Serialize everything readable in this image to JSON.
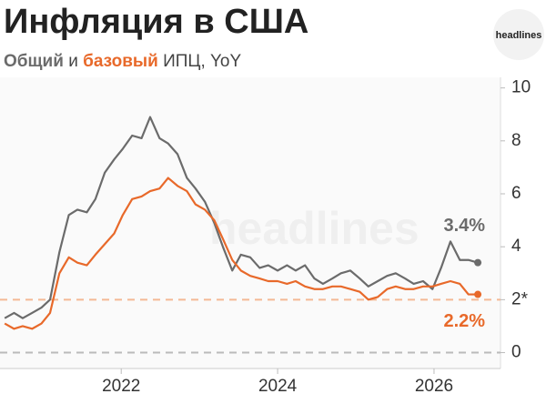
{
  "chart_data": {
    "type": "line",
    "title": "Инфляция в США",
    "subtitle_joiner": "и",
    "subtitle_suffix": "ИПЦ, YoY",
    "logo": "headlines",
    "watermark": "headlines",
    "x": [
      2020.51,
      2020.63,
      2020.74,
      2020.86,
      2020.98,
      2021.09,
      2021.21,
      2021.33,
      2021.44,
      2021.56,
      2021.67,
      2021.79,
      2021.91,
      2022.02,
      2022.14,
      2022.26,
      2022.37,
      2022.49,
      2022.6,
      2022.72,
      2022.84,
      2022.95,
      2023.07,
      2023.19,
      2023.3,
      2023.42,
      2023.53,
      2023.65,
      2023.77,
      2023.88,
      2024.0,
      2024.12,
      2024.23,
      2024.35,
      2024.47,
      2024.58,
      2024.7,
      2024.81,
      2024.93,
      2025.05,
      2025.16,
      2025.28,
      2025.4,
      2025.51,
      2025.63,
      2025.74,
      2025.86,
      2025.98,
      2026.09,
      2026.21,
      2026.33,
      2026.44,
      2026.56
    ],
    "series": [
      {
        "name": "Общий",
        "color": "#6b6b6b",
        "label": "3.4%",
        "values": [
          1.3,
          1.5,
          1.3,
          1.5,
          1.7,
          2.0,
          3.8,
          5.2,
          5.4,
          5.3,
          5.8,
          6.8,
          7.3,
          7.7,
          8.2,
          8.1,
          8.9,
          8.1,
          7.9,
          7.5,
          6.6,
          6.2,
          5.7,
          4.9,
          4.0,
          3.1,
          3.7,
          3.6,
          3.2,
          3.3,
          3.1,
          3.3,
          3.1,
          3.3,
          2.8,
          2.6,
          2.8,
          3.0,
          3.1,
          2.8,
          2.5,
          2.7,
          2.9,
          3.0,
          2.8,
          2.6,
          2.7,
          2.4,
          3.2,
          4.2,
          3.5,
          3.5,
          3.4
        ]
      },
      {
        "name": "базовый",
        "color": "#e8692a",
        "label": "2.2%",
        "values": [
          1.1,
          0.9,
          1.0,
          0.9,
          1.1,
          1.5,
          3.0,
          3.6,
          3.4,
          3.3,
          3.7,
          4.1,
          4.5,
          5.2,
          5.8,
          5.9,
          6.1,
          6.2,
          6.6,
          6.3,
          6.1,
          5.6,
          5.4,
          5.0,
          4.3,
          3.5,
          3.1,
          2.9,
          2.8,
          2.7,
          2.7,
          2.6,
          2.7,
          2.5,
          2.4,
          2.4,
          2.5,
          2.5,
          2.4,
          2.3,
          2.0,
          2.1,
          2.4,
          2.5,
          2.4,
          2.4,
          2.5,
          2.5,
          2.6,
          2.7,
          2.6,
          2.2,
          2.2
        ]
      }
    ],
    "xlim": [
      2020.45,
      2026.85
    ],
    "xticks": [
      2022,
      2024,
      2026
    ],
    "ylim": [
      -0.6,
      10.4
    ],
    "yticks": [
      0,
      {
        "value": 2,
        "label": "2*"
      },
      4,
      6,
      8,
      10
    ],
    "reference_lines": [
      {
        "value": 2,
        "color": "#f4b995"
      },
      {
        "value": 0,
        "color": "#bbbbbb"
      }
    ]
  }
}
